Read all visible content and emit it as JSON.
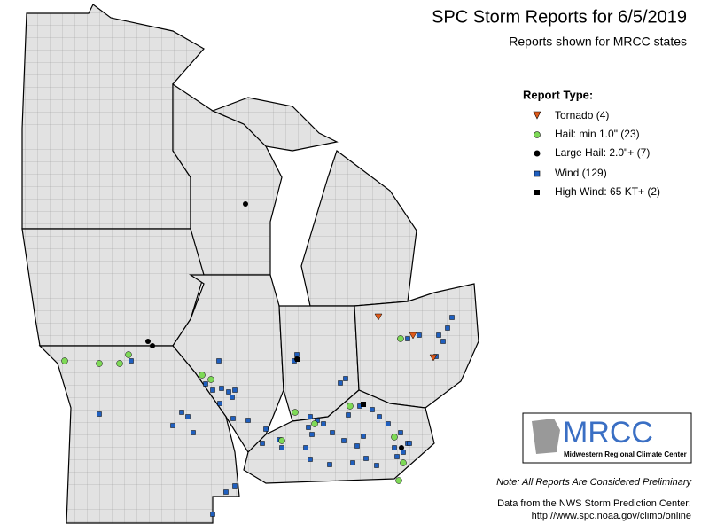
{
  "header": {
    "title": "SPC Storm Reports for 6/5/2019",
    "subtitle": "Reports shown for MRCC states"
  },
  "legend": {
    "title": "Report Type:",
    "items": [
      "Tornado (4)",
      "Hail: min 1.0\" (23)",
      "Large Hail: 2.0\"+ (7)",
      "Wind (129)",
      "High Wind: 65 KT+ (2)"
    ]
  },
  "logo": {
    "name": "MRCC",
    "caption": "Midwestern Regional Climate Center"
  },
  "footer": {
    "note": "Note: All Reports Are Considered Preliminary",
    "source": "Data from the NWS Storm Prediction Center:",
    "url": "http://www.spc.noaa.gov/climo/online"
  }
}
